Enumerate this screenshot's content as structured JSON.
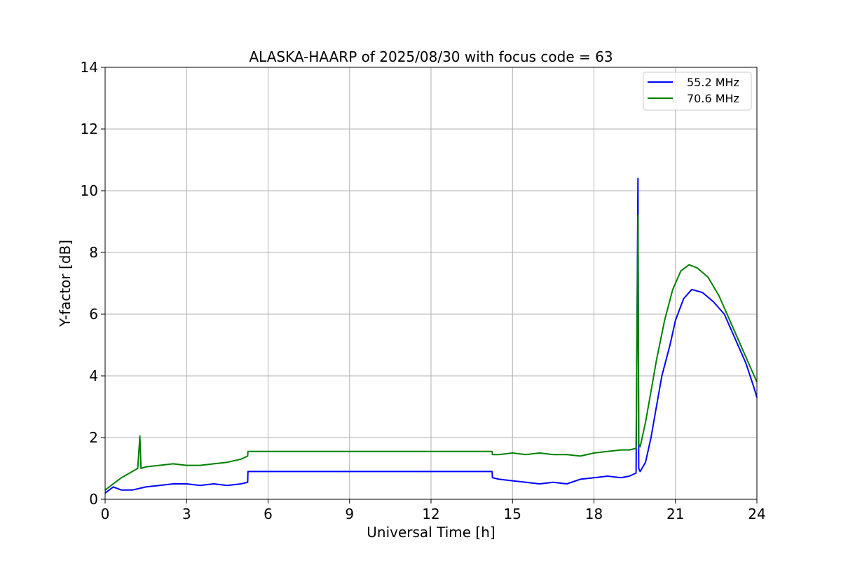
{
  "chart_data": {
    "type": "line",
    "title": "ALASKA-HAARP of 2025/08/30 with focus code = 63",
    "xlabel": "Universal Time [h]",
    "ylabel": "Y-factor [dB]",
    "xlim": [
      0,
      24
    ],
    "ylim": [
      0,
      14
    ],
    "xticks": [
      0,
      3,
      6,
      9,
      12,
      15,
      18,
      21,
      24
    ],
    "yticks": [
      0,
      2,
      4,
      6,
      8,
      10,
      12,
      14
    ],
    "grid": true,
    "legend_position": "top-right",
    "series": [
      {
        "name": "55.2 MHz",
        "color": "#0000ff",
        "x": [
          0,
          0.3,
          0.6,
          1.0,
          1.5,
          2.0,
          2.5,
          3.0,
          3.5,
          4.0,
          4.5,
          5.0,
          5.25,
          5.26,
          14.25,
          14.26,
          14.5,
          15.0,
          15.5,
          16.0,
          16.5,
          17.0,
          17.5,
          18.0,
          18.5,
          19.0,
          19.3,
          19.55,
          19.62,
          19.65,
          19.7,
          19.9,
          20.1,
          20.3,
          20.5,
          20.8,
          21.0,
          21.3,
          21.6,
          22.0,
          22.4,
          22.8,
          23.0,
          23.3,
          23.6,
          23.9,
          24.0
        ],
        "values": [
          0.2,
          0.4,
          0.3,
          0.3,
          0.4,
          0.45,
          0.5,
          0.5,
          0.45,
          0.5,
          0.45,
          0.5,
          0.55,
          0.9,
          0.9,
          0.7,
          0.65,
          0.6,
          0.55,
          0.5,
          0.55,
          0.5,
          0.65,
          0.7,
          0.75,
          0.7,
          0.75,
          0.85,
          10.4,
          1.0,
          0.9,
          1.2,
          2.0,
          3.0,
          4.0,
          5.0,
          5.8,
          6.5,
          6.8,
          6.7,
          6.4,
          6.0,
          5.6,
          5.0,
          4.4,
          3.6,
          3.3
        ]
      },
      {
        "name": "70.6 MHz",
        "color": "#008000",
        "x": [
          0,
          0.3,
          0.6,
          0.9,
          1.2,
          1.28,
          1.32,
          1.5,
          2.0,
          2.5,
          3.0,
          3.5,
          4.0,
          4.5,
          5.0,
          5.25,
          5.26,
          14.25,
          14.26,
          14.5,
          15.0,
          15.5,
          16.0,
          16.5,
          17.0,
          17.5,
          18.0,
          18.5,
          19.0,
          19.3,
          19.55,
          19.62,
          19.65,
          19.7,
          19.9,
          20.1,
          20.3,
          20.6,
          20.9,
          21.2,
          21.5,
          21.8,
          22.2,
          22.6,
          23.0,
          23.3,
          23.6,
          23.9,
          24.0
        ],
        "values": [
          0.3,
          0.5,
          0.7,
          0.85,
          1.0,
          2.05,
          1.0,
          1.05,
          1.1,
          1.15,
          1.1,
          1.1,
          1.15,
          1.2,
          1.3,
          1.4,
          1.55,
          1.55,
          1.45,
          1.45,
          1.5,
          1.45,
          1.5,
          1.45,
          1.45,
          1.4,
          1.5,
          1.55,
          1.6,
          1.6,
          1.65,
          9.2,
          1.8,
          1.7,
          2.5,
          3.5,
          4.5,
          5.8,
          6.8,
          7.4,
          7.6,
          7.5,
          7.2,
          6.6,
          5.8,
          5.2,
          4.6,
          4.0,
          3.8
        ]
      }
    ]
  }
}
